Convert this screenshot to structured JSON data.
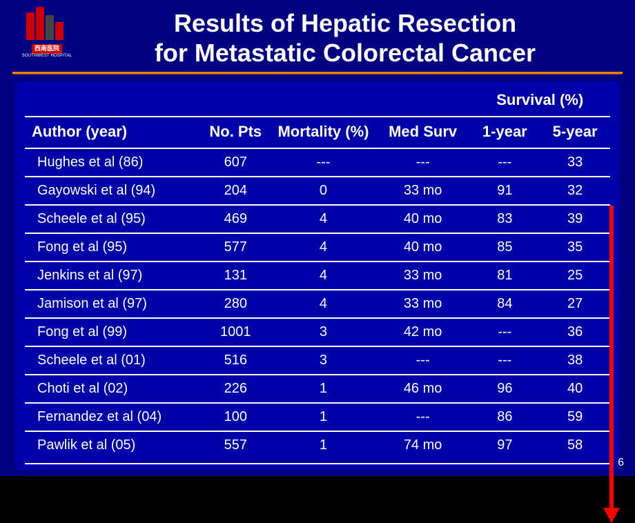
{
  "logo": {
    "cn": "西南医院",
    "en": "SOUTHWEST HOSPITAL"
  },
  "title": {
    "line1": "Results of Hepatic Resection",
    "line2": "for Metastatic Colorectal Cancer"
  },
  "table": {
    "survival_group": "Survival (%)",
    "columns": [
      "Author (year)",
      "No. Pts",
      "Mortality (%)",
      "Med Surv",
      "1-year",
      "5-year"
    ],
    "rows": [
      [
        "Hughes et al (86)",
        "607",
        "---",
        "---",
        "---",
        "33"
      ],
      [
        "Gayowski et al (94)",
        "204",
        "0",
        "33 mo",
        "91",
        "32"
      ],
      [
        "Scheele et al (95)",
        "469",
        "4",
        "40 mo",
        "83",
        "39"
      ],
      [
        "Fong et al (95)",
        "577",
        "4",
        "40 mo",
        "85",
        "35"
      ],
      [
        "Jenkins et al (97)",
        "131",
        "4",
        "33 mo",
        "81",
        "25"
      ],
      [
        "Jamison et al (97)",
        "280",
        "4",
        "33 mo",
        "84",
        "27"
      ],
      [
        "Fong et al (99)",
        "1001",
        "3",
        "42 mo",
        "---",
        "36"
      ],
      [
        "Scheele et al (01)",
        "516",
        "3",
        "---",
        "---",
        "38"
      ],
      [
        "Choti et al (02)",
        "226",
        "1",
        "46 mo",
        "96",
        "40"
      ],
      [
        "Fernandez et al (04)",
        "100",
        "1",
        "---",
        "86",
        "59"
      ],
      [
        "Pawlik et al (05)",
        "557",
        "1",
        "74 mo",
        "97",
        "58"
      ]
    ],
    "col_widths_pct": [
      30,
      12,
      18,
      16,
      12,
      12
    ]
  },
  "page_number": "6",
  "colors": {
    "slide_bg": "#000080",
    "table_bg": "#0000a8",
    "rule": "#ff8000",
    "arrow": "#ff0000",
    "text": "#ffffff"
  }
}
